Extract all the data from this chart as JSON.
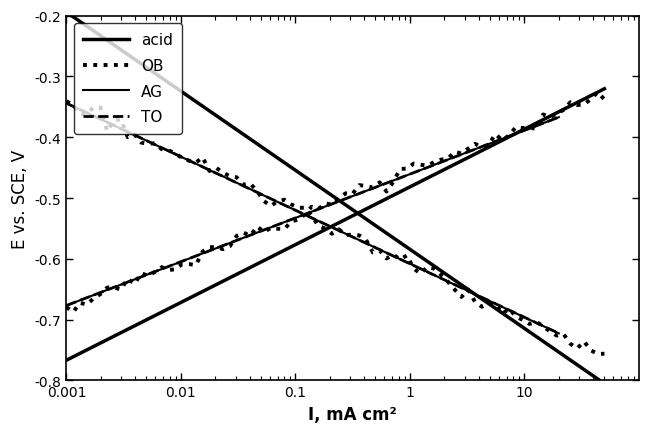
{
  "xlim": [
    0.001,
    100
  ],
  "ylim": [
    -0.8,
    -0.2
  ],
  "xlabel": "I, mA cm²",
  "ylabel": "E vs. SCE, V",
  "yticks": [
    -0.8,
    -0.7,
    -0.6,
    -0.5,
    -0.4,
    -0.3,
    -0.2
  ],
  "xticks": [
    0.001,
    0.01,
    0.1,
    1,
    10
  ],
  "background_color": "#ffffff",
  "noise_seed": 42,
  "curves": {
    "acid": {
      "label": "acid",
      "linestyle": "solid",
      "linewidth": 2.5,
      "color": "#000000",
      "Ecorr": -0.525,
      "Icorr": 0.35,
      "ba": 0.095,
      "bc": -0.13,
      "Imin_anodic": 0.001,
      "Imax_anodic": 50.0,
      "Imin_cathodic": 0.001,
      "Imax_cathodic": 50.0,
      "noise_anodic": 0.0,
      "noise_cathodic": 0.0
    },
    "OB": {
      "label": "OB",
      "linestyle": "dotted",
      "linewidth": 2.8,
      "color": "#000000",
      "Ecorr": -0.527,
      "Icorr": 0.12,
      "ba": 0.075,
      "bc": -0.09,
      "Imin_anodic": 0.001,
      "Imax_anodic": 50.0,
      "Imin_cathodic": 0.001,
      "Imax_cathodic": 50.0,
      "noise_anodic": 0.006,
      "noise_cathodic": 0.006
    },
    "AG": {
      "label": "AG",
      "linestyle": "solid",
      "linewidth": 1.5,
      "color": "#000000",
      "Ecorr": -0.527,
      "Icorr": 0.12,
      "ba": 0.072,
      "bc": -0.088,
      "Imin_anodic": 0.001,
      "Imax_anodic": 20.0,
      "Imin_cathodic": 0.001,
      "Imax_cathodic": 20.0,
      "noise_anodic": 0.0,
      "noise_cathodic": 0.0
    },
    "TO": {
      "label": "TO",
      "linestyle": "dashed",
      "linewidth": 2.0,
      "color": "#000000",
      "Ecorr": -0.527,
      "Icorr": 0.12,
      "ba": 0.072,
      "bc": -0.088,
      "Imin_anodic": 0.001,
      "Imax_anodic": 20.0,
      "Imin_cathodic": 0.001,
      "Imax_cathodic": 20.0,
      "noise_anodic": 0.0,
      "noise_cathodic": 0.0
    }
  },
  "legend": {
    "loc": "upper left",
    "fontsize": 11,
    "frameon": true
  }
}
